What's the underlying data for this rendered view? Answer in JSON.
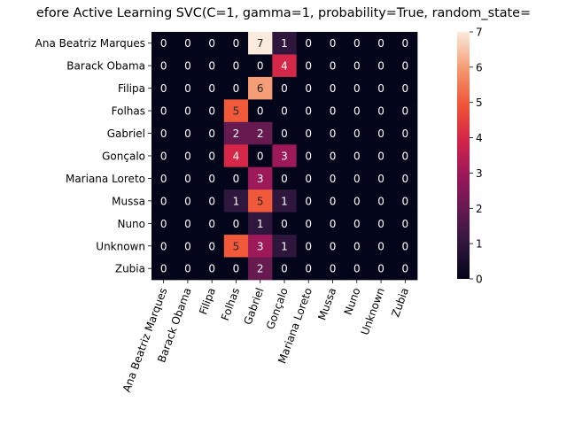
{
  "chart_data": {
    "type": "heatmap",
    "title": "efore Active Learning SVC(C=1, gamma=1, probability=True, random_state=",
    "row_labels": [
      "Ana Beatriz Marques",
      "Barack Obama",
      "Filipa",
      "Folhas",
      "Gabriel",
      "Gonçalo",
      "Mariana Loreto",
      "Mussa",
      "Nuno",
      "Unknown",
      "Zubia"
    ],
    "col_labels": [
      "Ana Beatriz Marques",
      "Barack Obama",
      "Filipa",
      "Folhas",
      "Gabriel",
      "Gonçalo",
      "Mariana Loreto",
      "Mussa",
      "Nuno",
      "Unknown",
      "Zubia"
    ],
    "values": [
      [
        0,
        0,
        0,
        0,
        7,
        1,
        0,
        0,
        0,
        0,
        0
      ],
      [
        0,
        0,
        0,
        0,
        0,
        4,
        0,
        0,
        0,
        0,
        0
      ],
      [
        0,
        0,
        0,
        0,
        6,
        0,
        0,
        0,
        0,
        0,
        0
      ],
      [
        0,
        0,
        0,
        5,
        0,
        0,
        0,
        0,
        0,
        0,
        0
      ],
      [
        0,
        0,
        0,
        2,
        2,
        0,
        0,
        0,
        0,
        0,
        0
      ],
      [
        0,
        0,
        0,
        4,
        0,
        3,
        0,
        0,
        0,
        0,
        0
      ],
      [
        0,
        0,
        0,
        0,
        3,
        0,
        0,
        0,
        0,
        0,
        0
      ],
      [
        0,
        0,
        0,
        1,
        5,
        1,
        0,
        0,
        0,
        0,
        0
      ],
      [
        0,
        0,
        0,
        0,
        1,
        0,
        0,
        0,
        0,
        0,
        0
      ],
      [
        0,
        0,
        0,
        5,
        3,
        1,
        0,
        0,
        0,
        0,
        0
      ],
      [
        0,
        0,
        0,
        0,
        2,
        0,
        0,
        0,
        0,
        0,
        0
      ]
    ],
    "colorbar": {
      "min": 0,
      "max": 7,
      "ticks": [
        0,
        1,
        2,
        3,
        4,
        5,
        6,
        7
      ]
    },
    "colormap": "rocket"
  }
}
